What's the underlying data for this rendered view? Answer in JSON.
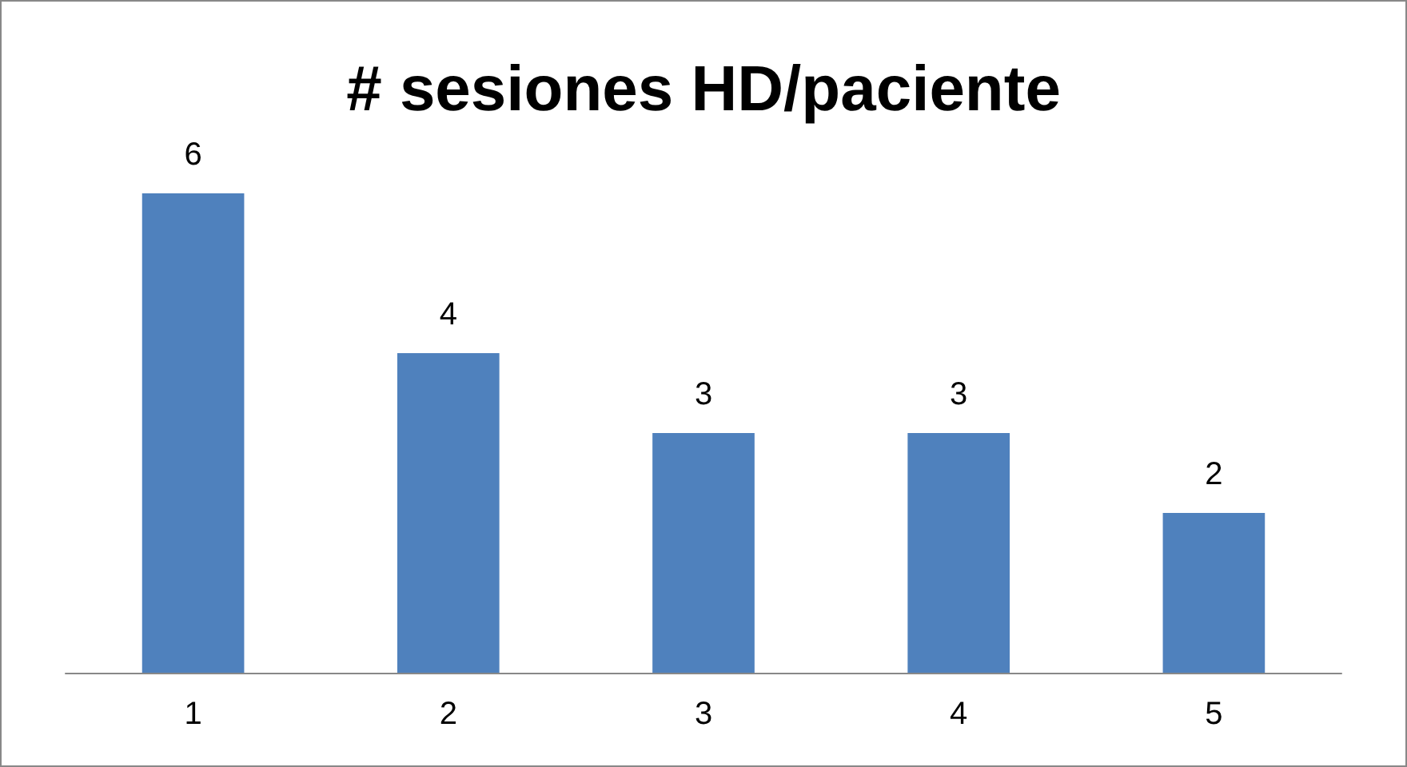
{
  "chart_data": {
    "type": "bar",
    "title": "# sesiones HD/paciente",
    "categories": [
      "1",
      "2",
      "3",
      "4",
      "5"
    ],
    "values": [
      6,
      4,
      3,
      3,
      2
    ],
    "color": "#4f81bd",
    "data_labels": true
  }
}
